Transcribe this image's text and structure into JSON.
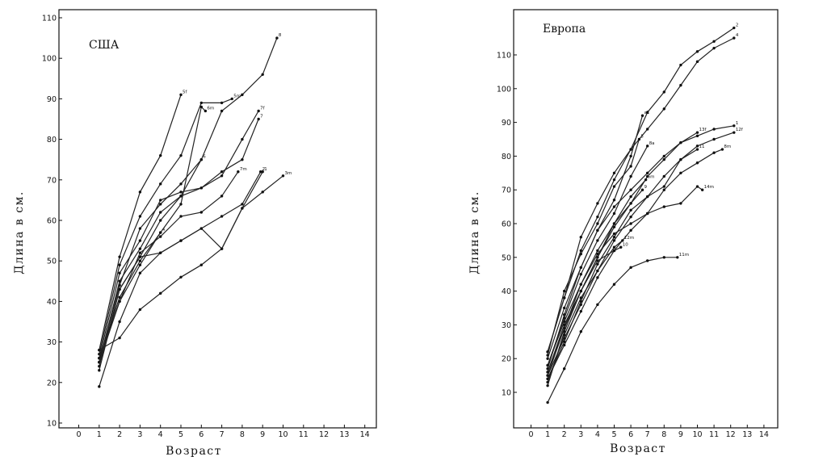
{
  "chart_data": [
    {
      "type": "line",
      "title": "США",
      "xlabel": "Возраст",
      "ylabel": "Длина в см.",
      "xlim": [
        -1,
        15
      ],
      "ylim": [
        9,
        110
      ],
      "x_ticks": [
        "0",
        "1",
        "2",
        "3",
        "4",
        "5",
        "6",
        "7",
        "8",
        "9",
        "10",
        "11",
        "12",
        "13",
        "14"
      ],
      "y_ticks": [
        "10",
        "20",
        "30",
        "40",
        "50",
        "60",
        "70",
        "80",
        "90",
        "100",
        "110"
      ],
      "grid": false,
      "series": [
        {
          "name": "5f",
          "x": [
            1,
            2,
            3,
            4,
            5
          ],
          "y": [
            28,
            51,
            67,
            76,
            91
          ]
        },
        {
          "name": "5m",
          "x": [
            1,
            2,
            3,
            4,
            5,
            6,
            7,
            7.5
          ],
          "y": [
            27,
            49,
            61,
            69,
            76,
            89,
            89,
            90
          ]
        },
        {
          "name": "8",
          "x": [
            1,
            2,
            3,
            4,
            5,
            6,
            7,
            8,
            9,
            9.7
          ],
          "y": [
            25,
            44,
            58,
            64,
            69,
            75,
            87,
            91,
            96,
            105
          ]
        },
        {
          "name": "7f",
          "x": [
            1,
            2,
            3,
            4,
            5,
            6,
            7,
            8,
            8.8
          ],
          "y": [
            26,
            47,
            55,
            65,
            67,
            68,
            71,
            80,
            87
          ]
        },
        {
          "name": "7",
          "x": [
            1,
            2,
            3,
            4,
            5,
            6,
            7,
            8,
            8.8
          ],
          "y": [
            25,
            45,
            53,
            62,
            66,
            68,
            72,
            75,
            85
          ]
        },
        {
          "name": "6",
          "x": [
            1,
            2,
            3,
            4,
            5,
            6
          ],
          "y": [
            23,
            43,
            51,
            60,
            66,
            75
          ]
        },
        {
          "name": "6m",
          "x": [
            1,
            2,
            3,
            4,
            5,
            6,
            6.2
          ],
          "y": [
            26,
            41,
            50,
            57,
            64,
            88,
            87
          ]
        },
        {
          "name": "4",
          "x": [
            1,
            2,
            3,
            4
          ],
          "y": [
            26,
            40,
            49,
            57
          ]
        },
        {
          "name": "7m",
          "x": [
            1,
            2,
            3,
            4,
            5,
            6,
            7,
            7.8
          ],
          "y": [
            25,
            40,
            52,
            56,
            61,
            62,
            66,
            72
          ]
        },
        {
          "name": "2",
          "x": [
            1,
            2,
            3,
            4,
            5,
            6,
            7,
            8,
            8.9
          ],
          "y": [
            24,
            43,
            51,
            52,
            55,
            58,
            61,
            64,
            72
          ]
        },
        {
          "name": "1",
          "x": [
            1,
            2,
            3,
            4,
            5,
            6,
            7,
            8,
            9
          ],
          "y": [
            19,
            35,
            47,
            52,
            55,
            58,
            53,
            63,
            72
          ]
        },
        {
          "name": "3m",
          "x": [
            1,
            2,
            3,
            4,
            5,
            6,
            7,
            8,
            9,
            10
          ],
          "y": [
            28,
            31,
            38,
            42,
            46,
            49,
            53,
            63,
            67,
            71
          ]
        }
      ]
    },
    {
      "type": "line",
      "title": "Европа",
      "xlabel": "Возраст",
      "ylabel": "Длина в см.",
      "xlim": [
        -1,
        14.5
      ],
      "ylim": [
        5,
        120
      ],
      "x_ticks": [
        "0",
        "1",
        "2",
        "3",
        "4",
        "5",
        "6",
        "7",
        "8",
        "9",
        "10",
        "11",
        "12",
        "13",
        "14"
      ],
      "y_ticks": [
        "10",
        "20",
        "30",
        "40",
        "50",
        "60",
        "70",
        "80",
        "90",
        "100",
        "110"
      ],
      "grid": false,
      "series": [
        {
          "name": "2",
          "x": [
            1,
            2,
            3,
            4,
            5,
            6,
            7,
            8,
            9,
            10,
            11,
            12.2
          ],
          "y": [
            22,
            38,
            56,
            66,
            75,
            82,
            93,
            99,
            107,
            111,
            114,
            118
          ]
        },
        {
          "name": "4",
          "x": [
            1,
            2,
            3,
            4,
            5,
            6,
            7,
            8,
            9,
            10,
            11,
            12.2
          ],
          "y": [
            22,
            38,
            52,
            62,
            73,
            82,
            88,
            94,
            101,
            108,
            112,
            115
          ]
        },
        {
          "name": "1",
          "x": [
            1,
            2,
            3,
            4,
            5,
            6,
            7,
            8,
            9,
            10,
            11,
            12.2
          ],
          "y": [
            17,
            33,
            47,
            58,
            65,
            70,
            75,
            80,
            84,
            86,
            88,
            89
          ]
        },
        {
          "name": "13f",
          "x": [
            1,
            2,
            3,
            4,
            5,
            6,
            7,
            8,
            9,
            10
          ],
          "y": [
            16,
            29,
            40,
            50,
            59,
            66,
            74,
            79,
            84,
            87
          ]
        },
        {
          "name": "12f",
          "x": [
            1,
            2,
            3,
            4,
            5,
            6,
            7,
            8,
            9,
            10,
            11,
            12.2
          ],
          "y": [
            15,
            26,
            36,
            46,
            55,
            62,
            68,
            74,
            79,
            83,
            85,
            87
          ]
        },
        {
          "name": "8m",
          "x": [
            1,
            2,
            3,
            4,
            5,
            6,
            7,
            8,
            9,
            10,
            11,
            11.5
          ],
          "y": [
            14,
            24,
            34,
            44,
            52,
            58,
            63,
            70,
            75,
            78,
            81,
            82
          ]
        },
        {
          "name": "11",
          "x": [
            1,
            2,
            3,
            4,
            5,
            6,
            7,
            8,
            9,
            10
          ],
          "y": [
            14,
            25,
            37,
            48,
            56,
            64,
            68,
            71,
            79,
            82
          ]
        },
        {
          "name": "14m",
          "x": [
            1,
            2,
            3,
            4,
            5,
            6,
            7,
            8,
            9,
            10,
            10.3
          ],
          "y": [
            18,
            31,
            42,
            51,
            57,
            60,
            63,
            65,
            66,
            71,
            70
          ]
        },
        {
          "name": "a1",
          "x": [
            1,
            2,
            3,
            4,
            5,
            6,
            6.7
          ],
          "y": [
            20,
            35,
            47,
            58,
            67,
            80,
            92
          ]
        },
        {
          "name": "8a",
          "x": [
            1,
            2,
            3,
            4,
            5,
            6,
            7
          ],
          "y": [
            18,
            32,
            45,
            55,
            63,
            74,
            83
          ]
        },
        {
          "name": "5",
          "x": [
            1,
            2,
            3,
            4,
            5,
            6,
            6.5
          ],
          "y": [
            21,
            40,
            51,
            60,
            71,
            77,
            85
          ]
        },
        {
          "name": "6m",
          "x": [
            1,
            2,
            3,
            4,
            5,
            6,
            6.9
          ],
          "y": [
            12,
            28,
            40,
            50,
            60,
            68,
            73
          ]
        },
        {
          "name": "9",
          "x": [
            1,
            2,
            3,
            4,
            5,
            6,
            6.7
          ],
          "y": [
            15,
            29,
            42,
            52,
            60,
            66,
            70
          ]
        },
        {
          "name": "12m",
          "x": [
            1,
            2,
            3,
            4,
            5,
            5.5
          ],
          "y": [
            13,
            27,
            38,
            46,
            53,
            55
          ]
        },
        {
          "name": "10",
          "x": [
            1,
            2,
            3,
            4,
            5,
            5.4
          ],
          "y": [
            16,
            30,
            40,
            49,
            52,
            53
          ]
        },
        {
          "name": "11m",
          "x": [
            1,
            2,
            3,
            4,
            5,
            6,
            7,
            8,
            8.8
          ],
          "y": [
            7,
            17,
            28,
            36,
            42,
            47,
            49,
            50,
            50
          ]
        }
      ]
    }
  ]
}
